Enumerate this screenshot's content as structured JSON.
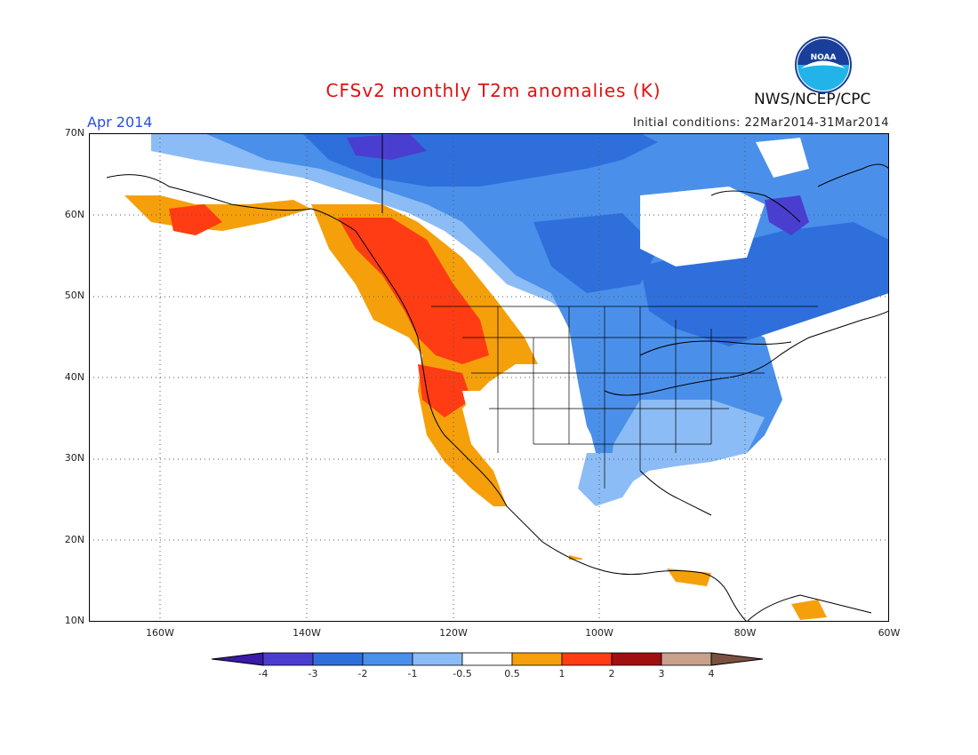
{
  "header": {
    "title": "CFSv2 monthly T2m anomalies (K)",
    "month_label": "Apr 2014",
    "initial_conditions": "Initial conditions: 22Mar2014-31Mar2014",
    "agency": "NWS/NCEP/CPC",
    "logo_text": "NOAA"
  },
  "map": {
    "lat_labels": [
      "70N",
      "60N",
      "50N",
      "40N",
      "30N",
      "20N",
      "10N"
    ],
    "lon_labels": [
      "160W",
      "140W",
      "120W",
      "100W",
      "80W",
      "60W"
    ],
    "lat_range": [
      10,
      70
    ],
    "lon_range": [
      -172,
      -60
    ],
    "grid": "dotted"
  },
  "colorbar": {
    "tick_labels": [
      "-4",
      "-3",
      "-2",
      "-1",
      "-0.5",
      "0.5",
      "1",
      "2",
      "3",
      "4"
    ],
    "colors": [
      "#3a1aa8",
      "#4a3ed0",
      "#2f6fdc",
      "#4a90ea",
      "#8cbcf5",
      "#ffffff",
      "#f5a00a",
      "#ff3c14",
      "#a01010",
      "#c8a08c",
      "#7a5040"
    ]
  },
  "anomaly_regions": [
    {
      "name": "warm-west-coast",
      "level": "1 to 2"
    },
    {
      "name": "warm-pacific-northwest",
      "level": "0.5 to 1"
    },
    {
      "name": "cold-central-canada",
      "level": "-2 to -1"
    },
    {
      "name": "cold-quebec",
      "level": "-3 to -2"
    },
    {
      "name": "cold-arctic",
      "level": "-4 to -3"
    }
  ]
}
